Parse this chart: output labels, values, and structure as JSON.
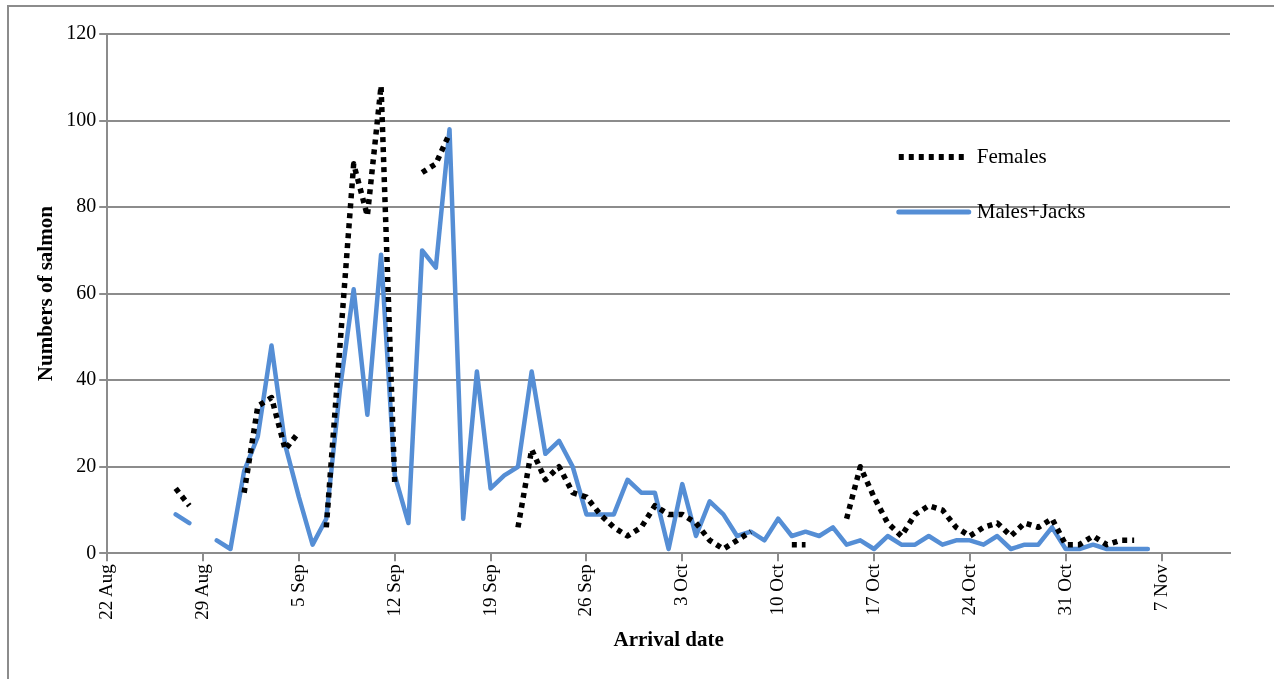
{
  "chart_data": {
    "type": "line",
    "xlabel": "Arrival date",
    "ylabel": "Numbers of salmon",
    "x": [
      "--08-27",
      "--08-28",
      "--08-29",
      "--08-30",
      "--08-31",
      "--09-01",
      "--09-02",
      "--09-03",
      "--09-04",
      "--09-05",
      "--09-06",
      "--09-07",
      "--09-08",
      "--09-09",
      "--09-10",
      "--09-11",
      "--09-12",
      "--09-13",
      "--09-14",
      "--09-15",
      "--09-16",
      "--09-17",
      "--09-18",
      "--09-19",
      "--09-20",
      "--09-21",
      "--09-22",
      "--09-23",
      "--09-24",
      "--09-25",
      "--09-26",
      "--09-27",
      "--09-28",
      "--09-29",
      "--09-30",
      "--10-01",
      "--10-02",
      "--10-03",
      "--10-04",
      "--10-05",
      "--10-06",
      "--10-07",
      "--10-08",
      "--10-09",
      "--10-10",
      "--10-11",
      "--10-12",
      "--10-13",
      "--10-14",
      "--10-15",
      "--10-16",
      "--10-17",
      "--10-18",
      "--10-19",
      "--10-20",
      "--10-21",
      "--10-22",
      "--10-23",
      "--10-24",
      "--10-25",
      "--10-26",
      "--10-27",
      "--10-28",
      "--10-29",
      "--10-30",
      "--10-31",
      "--11-01",
      "--11-02",
      "--11-03",
      "--11-04",
      "--11-05",
      "--11-06"
    ],
    "series": [
      {
        "name": "Females",
        "color": "#000000",
        "line_style": "dotted",
        "values": [
          15,
          11,
          null,
          null,
          null,
          14,
          34,
          36,
          24,
          28,
          null,
          6,
          48,
          90,
          78,
          108,
          16,
          null,
          88,
          90,
          97,
          null,
          null,
          null,
          null,
          6,
          24,
          17,
          20,
          14,
          13,
          9,
          6,
          4,
          6,
          11,
          9,
          9,
          7,
          3,
          1,
          3,
          5,
          null,
          null,
          2,
          2,
          null,
          null,
          8,
          20,
          13,
          7,
          4,
          9,
          11,
          10,
          6,
          4,
          6,
          7,
          4,
          7,
          6,
          8,
          2,
          2,
          4,
          2,
          3,
          3,
          null
        ]
      },
      {
        "name": "Males+Jacks",
        "color": "#558ed5",
        "line_style": "solid",
        "values": [
          9,
          7,
          null,
          3,
          1,
          19,
          27,
          48,
          25,
          13,
          2,
          8,
          38,
          61,
          32,
          69,
          18,
          7,
          70,
          66,
          98,
          8,
          42,
          15,
          18,
          20,
          42,
          23,
          26,
          20,
          9,
          9,
          9,
          17,
          14,
          14,
          1,
          16,
          4,
          12,
          9,
          4,
          5,
          3,
          8,
          4,
          5,
          4,
          6,
          2,
          3,
          1,
          4,
          2,
          2,
          4,
          2,
          3,
          3,
          2,
          4,
          1,
          2,
          2,
          6,
          1,
          1,
          2,
          1,
          1,
          1,
          1
        ]
      }
    ],
    "xlim": [
      "--08-22",
      "--11-12"
    ],
    "xticks": [
      {
        "value": "--08-22",
        "label": "22 Aug"
      },
      {
        "value": "--08-29",
        "label": "29 Aug"
      },
      {
        "value": "--09-05",
        "label": "5 Sep"
      },
      {
        "value": "--09-12",
        "label": "12 Sep"
      },
      {
        "value": "--09-19",
        "label": "19 Sep"
      },
      {
        "value": "--09-26",
        "label": "26 Sep"
      },
      {
        "value": "--10-03",
        "label": "3 Oct"
      },
      {
        "value": "--10-10",
        "label": "10 Oct"
      },
      {
        "value": "--10-17",
        "label": "17 Oct"
      },
      {
        "value": "--10-24",
        "label": "24 Oct"
      },
      {
        "value": "--10-31",
        "label": "31 Oct"
      },
      {
        "value": "--11-07",
        "label": "7 Nov"
      }
    ],
    "ylim": [
      0,
      120
    ],
    "yticks": [
      0,
      20,
      40,
      60,
      80,
      100,
      120
    ],
    "grid": "y",
    "legend": "top right",
    "marker": "none"
  }
}
